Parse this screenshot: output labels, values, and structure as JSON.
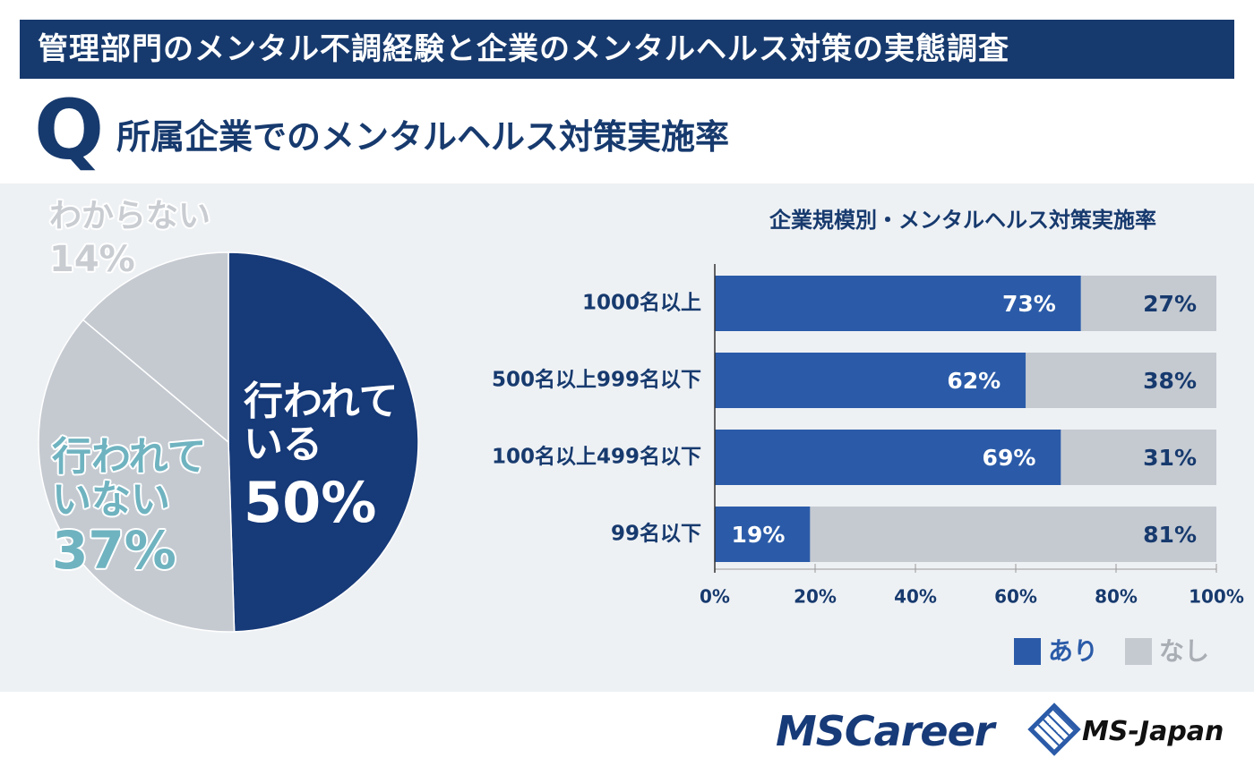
{
  "header": {
    "title": "管理部門のメンタル不調経験と企業のメンタルヘルス対策の実態調査"
  },
  "question": {
    "mark": "Q",
    "text": "所属企業でのメンタルヘルス対策実施率"
  },
  "chart_data": [
    {
      "type": "pie",
      "categories": [
        "行われている",
        "行われていない",
        "わからない"
      ],
      "values": [
        50,
        37,
        14
      ],
      "value_labels": [
        "50%",
        "37%",
        "14%"
      ],
      "colors": [
        "#173a78",
        "#c5cad1",
        "#c5cad1"
      ],
      "label_colors": [
        "#ffffff",
        "#6fb3c0",
        "#c9cdd2"
      ]
    },
    {
      "type": "bar",
      "orientation": "horizontal",
      "stacked": true,
      "title": "企業規模別・メンタルヘルス対策実施率",
      "categories": [
        "1000名以上",
        "500名以上999名以下",
        "100名以上499名以下",
        "99名以下"
      ],
      "series": [
        {
          "name": "あり",
          "color": "#2b5ba8",
          "values": [
            73,
            62,
            69,
            19
          ],
          "value_labels": [
            "73%",
            "62%",
            "69%",
            "19%"
          ]
        },
        {
          "name": "なし",
          "color": "#c5cad1",
          "values": [
            27,
            38,
            31,
            81
          ],
          "value_labels": [
            "27%",
            "38%",
            "31%",
            "81%"
          ]
        }
      ],
      "xlim": [
        0,
        100
      ],
      "xticks": [
        {
          "value": 0,
          "label": "0%"
        },
        {
          "value": 20,
          "label": "20%"
        },
        {
          "value": 40,
          "label": "40%"
        },
        {
          "value": 60,
          "label": "60%"
        },
        {
          "value": 80,
          "label": "80%"
        },
        {
          "value": 100,
          "label": "100%"
        }
      ]
    }
  ],
  "footer": {
    "logos": [
      "MSCareer",
      "MS-Japan"
    ]
  }
}
